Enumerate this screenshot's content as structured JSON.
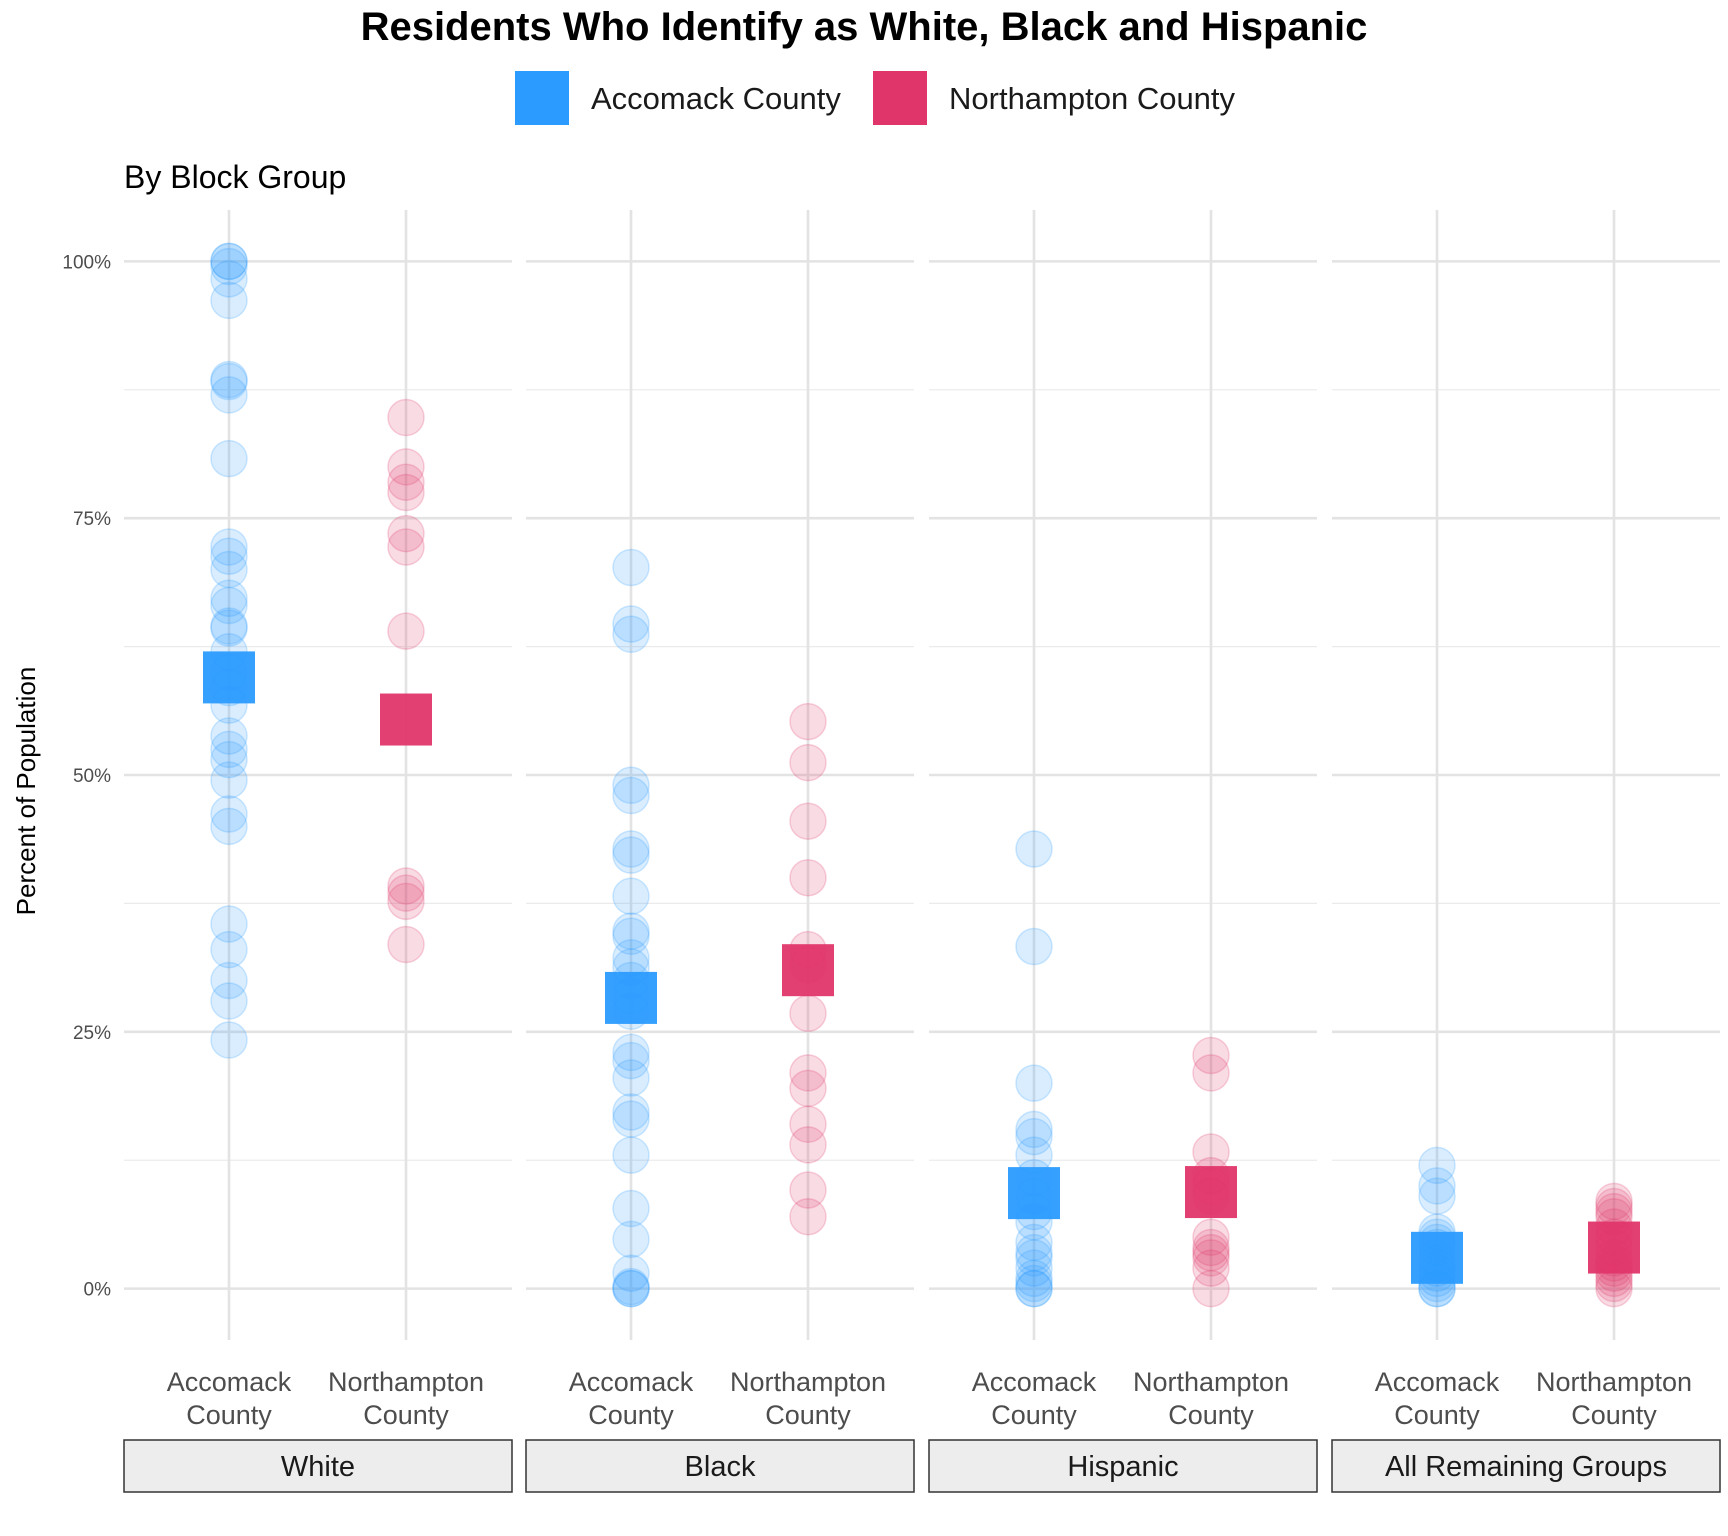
{
  "chart_data": {
    "type": "scatter",
    "title": "Residents Who Identify as White, Black and Hispanic",
    "subtitle": "By Block Group",
    "ylabel": "Percent of Population",
    "ylim": [
      -0.05,
      1.05
    ],
    "y_ticks": [
      {
        "value": 0,
        "label": "0%"
      },
      {
        "value": 0.25,
        "label": "25%"
      },
      {
        "value": 0.5,
        "label": "50%"
      },
      {
        "value": 0.75,
        "label": "75%"
      },
      {
        "value": 1,
        "label": "100%"
      }
    ],
    "grid": true,
    "legend_position": "top",
    "series": [
      {
        "name": "Accomack County",
        "color": "#2b9bff",
        "x_label": [
          "Accomack",
          "County"
        ]
      },
      {
        "name": "Northampton County",
        "color": "#e0356a",
        "x_label": [
          "Northampton",
          "County"
        ]
      }
    ],
    "facets": [
      {
        "label": "White",
        "points": [
          [
            1.0,
            1.0,
            0.995,
            0.983,
            0.962,
            0.885,
            0.883,
            0.87,
            0.808,
            0.722,
            0.713,
            0.7,
            0.672,
            0.665,
            0.645,
            0.643,
            0.62,
            0.6,
            0.585,
            0.568,
            0.538,
            0.525,
            0.515,
            0.495,
            0.462,
            0.45,
            0.355,
            0.33,
            0.3,
            0.28,
            0.242
          ],
          [
            0.848,
            0.8,
            0.785,
            0.775,
            0.735,
            0.722,
            0.64,
            0.392,
            0.385,
            0.377,
            0.335
          ]
        ],
        "means": [
          0.595,
          0.554
        ]
      },
      {
        "label": "Black",
        "points": [
          [
            0.702,
            0.647,
            0.637,
            0.49,
            0.48,
            0.428,
            0.422,
            0.382,
            0.348,
            0.343,
            0.322,
            0.313,
            0.3,
            0.285,
            0.27,
            0.23,
            0.222,
            0.205,
            0.172,
            0.165,
            0.13,
            0.078,
            0.048,
            0.015,
            0.002,
            0.0,
            0.0
          ],
          [
            0.552,
            0.512,
            0.455,
            0.4,
            0.33,
            0.315,
            0.268,
            0.21,
            0.195,
            0.16,
            0.14,
            0.096,
            0.07
          ]
        ],
        "means": [
          0.283,
          0.31
        ]
      },
      {
        "label": "Hispanic",
        "points": [
          [
            0.428,
            0.333,
            0.2,
            0.155,
            0.148,
            0.13,
            0.108,
            0.09,
            0.075,
            0.065,
            0.045,
            0.035,
            0.03,
            0.02,
            0.01,
            0.005,
            0.0,
            0.0
          ],
          [
            0.227,
            0.21,
            0.133,
            0.11,
            0.1,
            0.09,
            0.05,
            0.04,
            0.035,
            0.03,
            0.02,
            0.0
          ]
        ],
        "means": [
          0.093,
          0.094
        ]
      },
      {
        "label": "All Remaining Groups",
        "points": [
          [
            0.12,
            0.1,
            0.09,
            0.055,
            0.05,
            0.045,
            0.04,
            0.03,
            0.025,
            0.02,
            0.015,
            0.01,
            0.005,
            0.0,
            0.0
          ],
          [
            0.085,
            0.08,
            0.075,
            0.07,
            0.06,
            0.05,
            0.04,
            0.03,
            0.025,
            0.02,
            0.015,
            0.01,
            0.005,
            0.0
          ]
        ],
        "means": [
          0.03,
          0.04
        ]
      }
    ]
  }
}
